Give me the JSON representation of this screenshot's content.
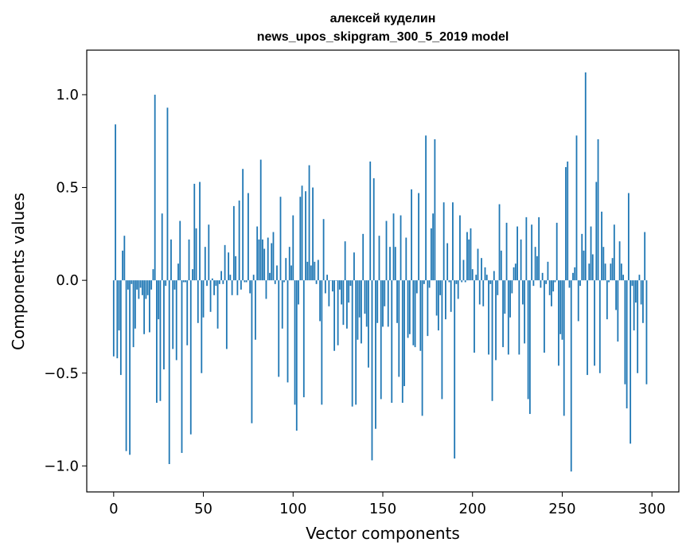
{
  "chart_data": {
    "type": "bar",
    "title_line1": "алексей куделин",
    "title_line2": "news_upos_skipgram_300_5_2019 model",
    "xlabel": "Vector components",
    "ylabel": "Components values",
    "xlim": [
      -15,
      315
    ],
    "ylim": [
      -1.14,
      1.24
    ],
    "xticks": [
      0,
      50,
      100,
      150,
      200,
      250,
      300
    ],
    "xtick_labels": [
      "0",
      "50",
      "100",
      "150",
      "200",
      "250",
      "300"
    ],
    "yticks": [
      -1.0,
      -0.5,
      0.0,
      0.5,
      1.0
    ],
    "ytick_labels": [
      "−1.0",
      "−0.5",
      "0.0",
      "0.5",
      "1.0"
    ],
    "bar_color": "#1f77b4",
    "values": [
      -0.41,
      0.84,
      -0.42,
      -0.27,
      -0.51,
      0.16,
      0.24,
      -0.92,
      -0.05,
      -0.94,
      -0.02,
      -0.36,
      -0.26,
      -0.05,
      -0.1,
      -0.04,
      -0.08,
      -0.29,
      -0.1,
      -0.08,
      -0.28,
      -0.05,
      0.06,
      1.0,
      -0.66,
      -0.21,
      -0.65,
      0.36,
      -0.48,
      -0.03,
      0.93,
      -0.99,
      0.22,
      -0.37,
      -0.05,
      -0.43,
      0.09,
      0.32,
      -0.93,
      -0.01,
      -0.01,
      -0.35,
      0.22,
      -0.83,
      0.06,
      0.52,
      0.28,
      -0.23,
      0.53,
      -0.5,
      -0.2,
      0.18,
      -0.03,
      0.3,
      -0.17,
      0.01,
      -0.08,
      -0.03,
      -0.26,
      -0.02,
      0.05,
      -0.02,
      0.19,
      -0.37,
      0.15,
      0.03,
      -0.08,
      0.4,
      0.13,
      -0.08,
      0.43,
      -0.05,
      0.6,
      -0.01,
      -0.01,
      0.47,
      -0.07,
      -0.77,
      0.03,
      -0.32,
      0.29,
      0.22,
      0.65,
      0.22,
      0.17,
      -0.1,
      0.23,
      0.04,
      0.2,
      0.26,
      -0.02,
      0.08,
      -0.52,
      0.45,
      -0.26,
      -0.01,
      0.12,
      -0.55,
      0.18,
      0.08,
      0.35,
      -0.67,
      -0.81,
      -0.13,
      0.45,
      0.51,
      -0.63,
      0.48,
      0.1,
      0.62,
      0.08,
      0.5,
      0.1,
      -0.02,
      0.11,
      -0.22,
      -0.67,
      0.33,
      -0.07,
      0.03,
      -0.14,
      0.0,
      -0.06,
      -0.38,
      0.0,
      -0.35,
      -0.05,
      -0.13,
      -0.24,
      0.21,
      -0.26,
      -0.12,
      -0.03,
      -0.68,
      0.15,
      -0.67,
      -0.32,
      -0.2,
      -0.34,
      0.25,
      -0.18,
      -0.25,
      -0.47,
      0.64,
      -0.97,
      0.55,
      -0.8,
      -0.23,
      0.24,
      -0.64,
      -0.25,
      -0.14,
      0.32,
      -0.25,
      0.18,
      -0.66,
      0.36,
      0.18,
      -0.23,
      -0.52,
      0.35,
      -0.66,
      -0.57,
      0.23,
      -0.31,
      -0.29,
      0.49,
      -0.35,
      -0.36,
      -0.07,
      0.47,
      -0.38,
      -0.73,
      -0.02,
      0.78,
      -0.3,
      -0.04,
      0.28,
      0.36,
      0.76,
      -0.19,
      -0.27,
      -0.08,
      -0.64,
      0.42,
      -0.21,
      0.2,
      -0.01,
      -0.17,
      0.42,
      -0.96,
      -0.02,
      -0.1,
      0.35,
      -0.01,
      0.11,
      -0.01,
      0.26,
      0.22,
      0.28,
      0.06,
      -0.39,
      0.03,
      0.17,
      -0.13,
      0.12,
      -0.14,
      0.07,
      0.03,
      -0.4,
      -0.02,
      -0.65,
      0.05,
      -0.43,
      -0.08,
      0.41,
      0.16,
      -0.36,
      -0.18,
      0.31,
      -0.4,
      -0.2,
      -0.07,
      0.07,
      0.09,
      0.29,
      -0.4,
      0.22,
      -0.13,
      -0.34,
      0.34,
      -0.64,
      -0.72,
      0.3,
      -0.03,
      0.18,
      0.13,
      0.34,
      -0.04,
      0.04,
      -0.39,
      -0.02,
      0.1,
      -0.08,
      -0.14,
      -0.06,
      -0.01,
      0.31,
      -0.46,
      -0.29,
      -0.32,
      -0.73,
      0.61,
      0.64,
      -0.04,
      -1.03,
      0.04,
      0.07,
      0.78,
      -0.22,
      -0.03,
      0.25,
      0.16,
      1.12,
      -0.51,
      0.09,
      0.29,
      0.14,
      -0.46,
      0.53,
      0.76,
      -0.5,
      0.37,
      0.18,
      0.09,
      -0.21,
      -0.01,
      0.09,
      0.12,
      0.3,
      -0.16,
      -0.33,
      0.21,
      0.09,
      0.03,
      -0.56,
      -0.69,
      0.47,
      -0.88,
      -0.03,
      -0.27,
      -0.12,
      -0.5,
      0.03,
      -0.13,
      -0.23,
      0.26,
      -0.56
    ]
  }
}
